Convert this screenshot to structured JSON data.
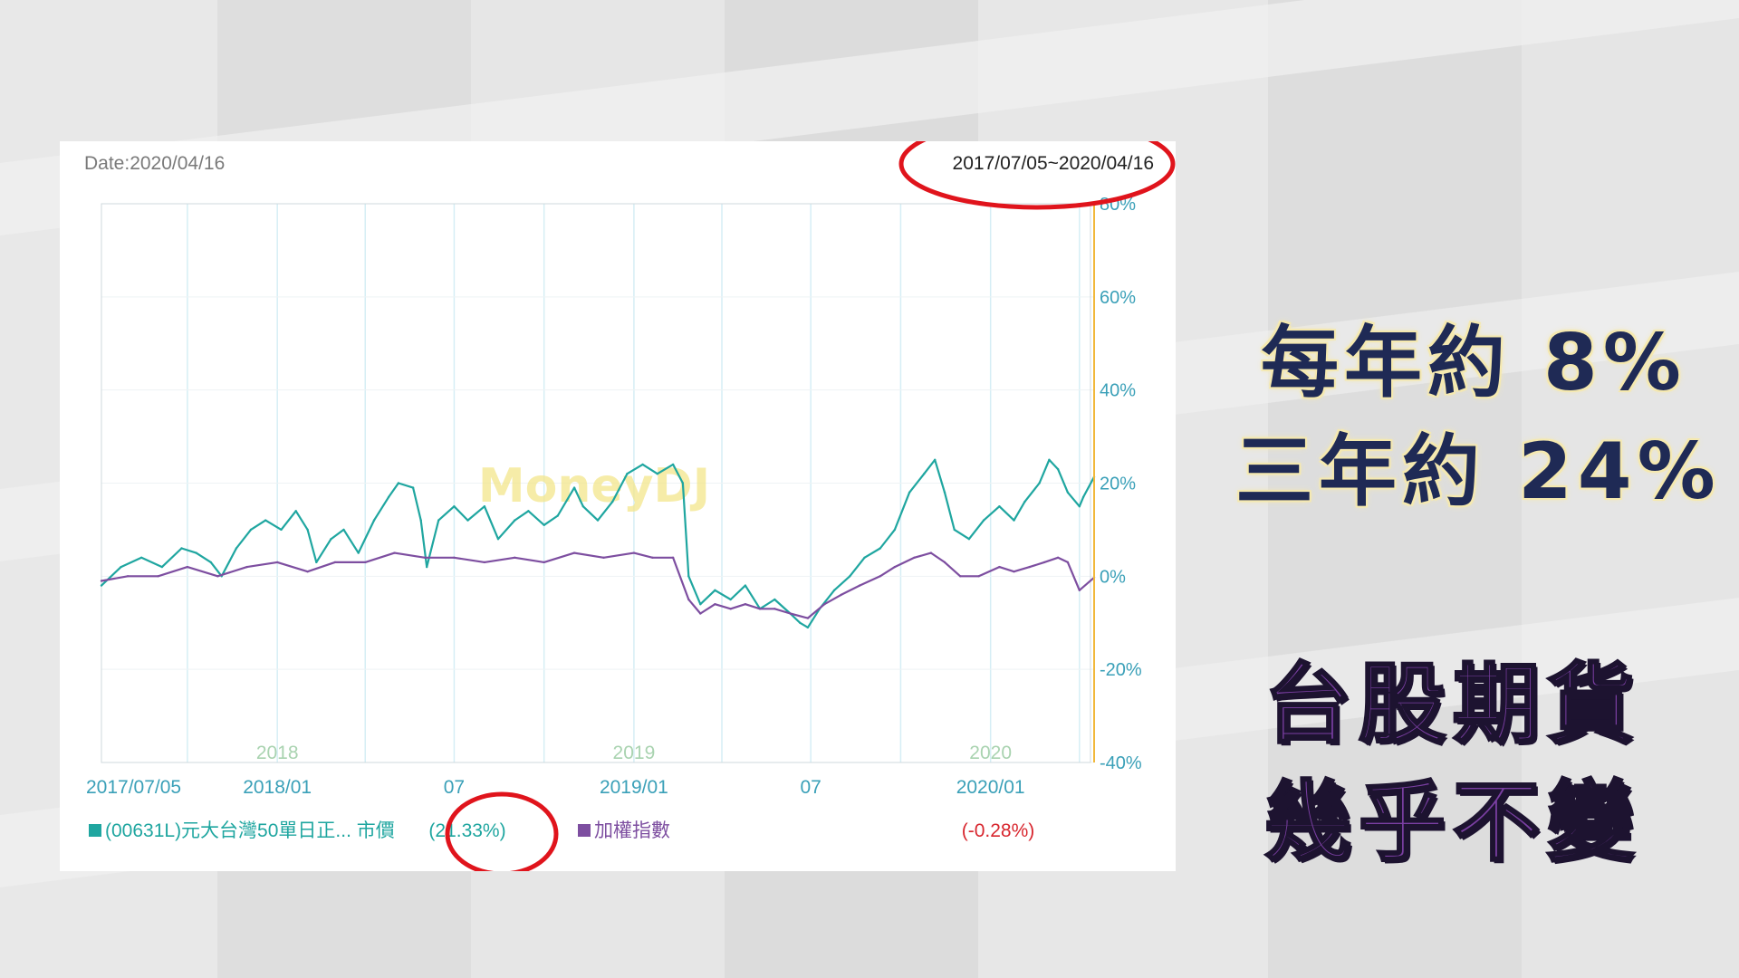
{
  "header": {
    "date_label": "Date:2020/04/16",
    "range_label": "2017/07/05~2020/04/16"
  },
  "watermark": "MoneyDJ",
  "annotations": {
    "line1": "每年約 8%",
    "line2": "三年約 24%",
    "line3": "台股期貨",
    "line4": "幾乎不變"
  },
  "colors": {
    "teal": "#1fa6a0",
    "purple": "#7d4ea0",
    "red_circle": "#e0141c",
    "axis_text": "#3aa0b8",
    "red_value": "#d8262e"
  },
  "chart_data": {
    "type": "line",
    "x_start": "2017-07-05",
    "x_end": "2020-04-16",
    "ylim": [
      -40,
      80
    ],
    "y_unit": "%",
    "y_ticks": [
      "80%",
      "60%",
      "40%",
      "20%",
      "0%",
      "-20%",
      "-40%"
    ],
    "y_tick_values": [
      80,
      60,
      40,
      20,
      0,
      -20,
      -40
    ],
    "x_tick_labels": [
      {
        "date": "2017-07-05",
        "label": "2017/07/05"
      },
      {
        "date": "2018-01-01",
        "label": "2018/01"
      },
      {
        "date": "2018-07-01",
        "label": "07"
      },
      {
        "date": "2019-01-01",
        "label": "2019/01"
      },
      {
        "date": "2019-07-01",
        "label": "07"
      },
      {
        "date": "2020-01-01",
        "label": "2020/01"
      }
    ],
    "year_labels": [
      {
        "date": "2018-01-01",
        "label": "2018"
      },
      {
        "date": "2019-01-01",
        "label": "2019"
      },
      {
        "date": "2020-01-01",
        "label": "2020"
      }
    ],
    "grid_dates": [
      "2017-10-01",
      "2018-01-01",
      "2018-04-01",
      "2018-07-01",
      "2018-10-01",
      "2019-01-01",
      "2019-04-01",
      "2019-07-01",
      "2019-10-01",
      "2020-01-01",
      "2020-04-01"
    ],
    "grid": true,
    "legend_placement": "bottom",
    "series": [
      {
        "name": "(00631L)元大台灣50單日正... 市價",
        "final_value_label": "(21.33%)",
        "color": "#1fa6a0",
        "points": [
          [
            "2017-07-05",
            -2
          ],
          [
            "2017-07-25",
            2
          ],
          [
            "2017-08-15",
            4
          ],
          [
            "2017-09-05",
            2
          ],
          [
            "2017-09-25",
            6
          ],
          [
            "2017-10-10",
            5
          ],
          [
            "2017-10-25",
            3
          ],
          [
            "2017-11-05",
            0
          ],
          [
            "2017-11-20",
            6
          ],
          [
            "2017-12-05",
            10
          ],
          [
            "2017-12-20",
            12
          ],
          [
            "2018-01-05",
            10
          ],
          [
            "2018-01-20",
            14
          ],
          [
            "2018-02-01",
            10
          ],
          [
            "2018-02-10",
            3
          ],
          [
            "2018-02-25",
            8
          ],
          [
            "2018-03-10",
            10
          ],
          [
            "2018-03-25",
            5
          ],
          [
            "2018-04-10",
            12
          ],
          [
            "2018-04-25",
            17
          ],
          [
            "2018-05-05",
            20
          ],
          [
            "2018-05-20",
            19
          ],
          [
            "2018-05-28",
            12
          ],
          [
            "2018-06-03",
            2
          ],
          [
            "2018-06-15",
            12
          ],
          [
            "2018-07-01",
            15
          ],
          [
            "2018-07-15",
            12
          ],
          [
            "2018-08-01",
            15
          ],
          [
            "2018-08-15",
            8
          ],
          [
            "2018-09-01",
            12
          ],
          [
            "2018-09-15",
            14
          ],
          [
            "2018-10-01",
            11
          ],
          [
            "2018-10-15",
            13
          ],
          [
            "2018-11-01",
            19
          ],
          [
            "2018-11-10",
            15
          ],
          [
            "2018-11-25",
            12
          ],
          [
            "2018-12-10",
            16
          ],
          [
            "2018-12-25",
            22
          ],
          [
            "2019-01-10",
            24
          ],
          [
            "2019-01-25",
            22
          ],
          [
            "2019-02-10",
            24
          ],
          [
            "2019-02-20",
            20
          ],
          [
            "2019-02-26",
            0
          ],
          [
            "2019-03-10",
            -6
          ],
          [
            "2019-03-25",
            -3
          ],
          [
            "2019-04-10",
            -5
          ],
          [
            "2019-04-25",
            -2
          ],
          [
            "2019-05-10",
            -7
          ],
          [
            "2019-05-25",
            -5
          ],
          [
            "2019-06-10",
            -8
          ],
          [
            "2019-06-20",
            -10
          ],
          [
            "2019-06-28",
            -11
          ],
          [
            "2019-07-10",
            -7
          ],
          [
            "2019-07-25",
            -3
          ],
          [
            "2019-08-10",
            0
          ],
          [
            "2019-08-25",
            4
          ],
          [
            "2019-09-10",
            6
          ],
          [
            "2019-09-25",
            10
          ],
          [
            "2019-10-10",
            18
          ],
          [
            "2019-10-25",
            22
          ],
          [
            "2019-11-05",
            25
          ],
          [
            "2019-11-15",
            18
          ],
          [
            "2019-11-25",
            10
          ],
          [
            "2019-12-10",
            8
          ],
          [
            "2019-12-25",
            12
          ],
          [
            "2020-01-10",
            15
          ],
          [
            "2020-01-25",
            12
          ],
          [
            "2020-02-05",
            16
          ],
          [
            "2020-02-20",
            20
          ],
          [
            "2020-03-01",
            25
          ],
          [
            "2020-03-10",
            23
          ],
          [
            "2020-03-20",
            18
          ],
          [
            "2020-04-01",
            15
          ],
          [
            "2020-04-05",
            17
          ],
          [
            "2020-04-16",
            21.33
          ]
        ]
      },
      {
        "name": "加權指數",
        "final_value_label": "(-0.28%)",
        "color": "#7d4ea0",
        "points": [
          [
            "2017-07-05",
            -1
          ],
          [
            "2017-08-01",
            0
          ],
          [
            "2017-09-01",
            0
          ],
          [
            "2017-10-01",
            2
          ],
          [
            "2017-11-01",
            0
          ],
          [
            "2017-12-01",
            2
          ],
          [
            "2018-01-01",
            3
          ],
          [
            "2018-02-01",
            1
          ],
          [
            "2018-03-01",
            3
          ],
          [
            "2018-04-01",
            3
          ],
          [
            "2018-05-01",
            5
          ],
          [
            "2018-06-01",
            4
          ],
          [
            "2018-07-01",
            4
          ],
          [
            "2018-08-01",
            3
          ],
          [
            "2018-09-01",
            4
          ],
          [
            "2018-10-01",
            3
          ],
          [
            "2018-11-01",
            5
          ],
          [
            "2018-12-01",
            4
          ],
          [
            "2019-01-01",
            5
          ],
          [
            "2019-01-20",
            4
          ],
          [
            "2019-02-10",
            4
          ],
          [
            "2019-02-26",
            -5
          ],
          [
            "2019-03-10",
            -8
          ],
          [
            "2019-03-25",
            -6
          ],
          [
            "2019-04-10",
            -7
          ],
          [
            "2019-04-25",
            -6
          ],
          [
            "2019-05-10",
            -7
          ],
          [
            "2019-05-25",
            -7
          ],
          [
            "2019-06-10",
            -8
          ],
          [
            "2019-06-28",
            -9
          ],
          [
            "2019-07-15",
            -6
          ],
          [
            "2019-08-01",
            -4
          ],
          [
            "2019-08-20",
            -2
          ],
          [
            "2019-09-10",
            0
          ],
          [
            "2019-09-25",
            2
          ],
          [
            "2019-10-15",
            4
          ],
          [
            "2019-11-01",
            5
          ],
          [
            "2019-11-15",
            3
          ],
          [
            "2019-12-01",
            0
          ],
          [
            "2019-12-20",
            0
          ],
          [
            "2020-01-10",
            2
          ],
          [
            "2020-01-25",
            1
          ],
          [
            "2020-02-10",
            2
          ],
          [
            "2020-02-25",
            3
          ],
          [
            "2020-03-10",
            4
          ],
          [
            "2020-03-20",
            3
          ],
          [
            "2020-04-01",
            -3
          ],
          [
            "2020-04-16",
            -0.28
          ]
        ]
      }
    ]
  }
}
